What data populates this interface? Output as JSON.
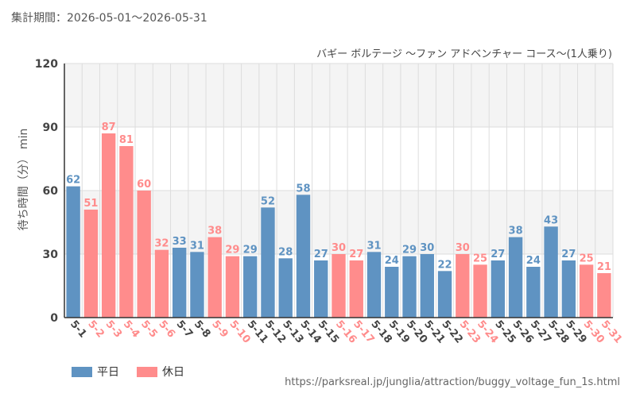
{
  "period_text": "集計期間：2026-05-01～2026-05-31",
  "source_text": "https://parksreal.jp/junglia/attraction/buggy_voltage_fun_1s.html",
  "colors": {
    "weekday": "#5f93c2",
    "holiday": "#ff8c8c",
    "grid": "#dddddd",
    "band": "#f4f4f4"
  },
  "legend": [
    {
      "label": "平日",
      "kind": "weekday"
    },
    {
      "label": "休日",
      "kind": "holiday"
    }
  ],
  "chart_data": {
    "type": "bar",
    "title": "バギー ボルテージ 〜ファン アドベンチャー コース〜(1人乗り)",
    "ylabel": "待ち時間（分） min",
    "ylim": [
      0,
      120
    ],
    "yticks": [
      0,
      30,
      60,
      90,
      120
    ],
    "grid": true,
    "legend_position": "bottom-left",
    "categories": [
      "5-1",
      "5-2",
      "5-3",
      "5-4",
      "5-5",
      "5-6",
      "5-7",
      "5-8",
      "5-9",
      "5-10",
      "5-11",
      "5-12",
      "5-13",
      "5-14",
      "5-15",
      "5-16",
      "5-17",
      "5-18",
      "5-19",
      "5-20",
      "5-21",
      "5-22",
      "5-23",
      "5-24",
      "5-25",
      "5-26",
      "5-27",
      "5-28",
      "5-29",
      "5-30",
      "5-31"
    ],
    "values": [
      62,
      51,
      87,
      81,
      60,
      32,
      33,
      31,
      38,
      29,
      29,
      52,
      28,
      58,
      27,
      30,
      27,
      31,
      24,
      29,
      30,
      22,
      30,
      25,
      27,
      38,
      24,
      43,
      27,
      25,
      21
    ],
    "day_type": [
      "weekday",
      "holiday",
      "holiday",
      "holiday",
      "holiday",
      "holiday",
      "weekday",
      "weekday",
      "holiday",
      "holiday",
      "weekday",
      "weekday",
      "weekday",
      "weekday",
      "weekday",
      "holiday",
      "holiday",
      "weekday",
      "weekday",
      "weekday",
      "weekday",
      "weekday",
      "holiday",
      "holiday",
      "weekday",
      "weekday",
      "weekday",
      "weekday",
      "weekday",
      "holiday",
      "holiday"
    ]
  }
}
